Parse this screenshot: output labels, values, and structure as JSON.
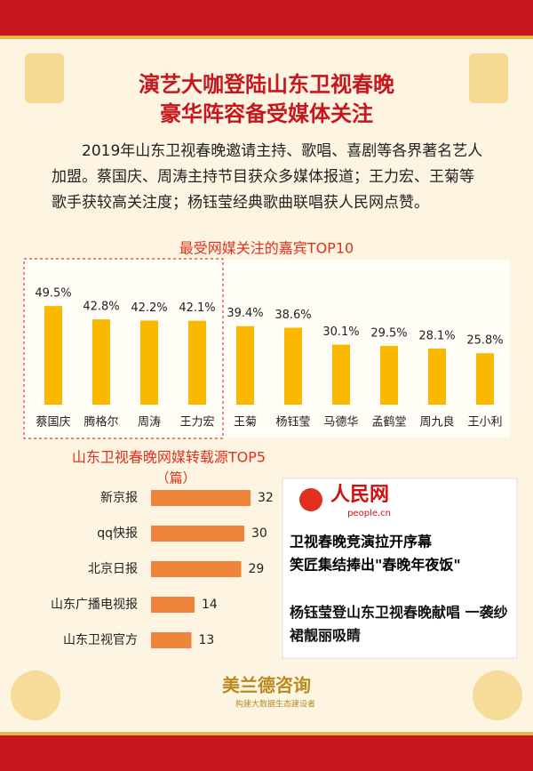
{
  "header": {
    "title_line1": "演艺大咖登陆山东卫视春晚",
    "title_line2": "豪华阵容备受媒体关注"
  },
  "intro": "2019年山东卫视春晚邀请主持、歌唱、喜剧等各界著名艺人加盟。蔡国庆、周涛主持节目获众多媒体报道；王力宏、王菊等歌手获较高关注度；杨钰莹经典歌曲联唱获人民网点赞。",
  "chart_data": [
    {
      "type": "bar",
      "title": "最受网媒关注的嘉宾TOP10",
      "categories": [
        "蔡国庆",
        "腾格尔",
        "周涛",
        "王力宏",
        "王菊",
        "杨钰莹",
        "马德华",
        "孟鹤堂",
        "周九良",
        "王小利"
      ],
      "values": [
        49.5,
        42.8,
        42.2,
        42.1,
        39.4,
        38.6,
        30.1,
        29.5,
        28.1,
        25.8
      ],
      "value_labels": [
        "49.5%",
        "42.8%",
        "42.2%",
        "42.1%",
        "39.4%",
        "38.6%",
        "30.1%",
        "29.5%",
        "28.1%",
        "25.8%"
      ],
      "color": "#fbb800"
    },
    {
      "type": "hbar",
      "title": "山东卫视春晚网媒转载源TOP5",
      "subtitle": "（篇）",
      "categories": [
        "新京报",
        "qq快报",
        "北京日报",
        "山东广播电视报",
        "山东卫视官方"
      ],
      "values": [
        32,
        30,
        29,
        14,
        13
      ],
      "color": "#f0843c"
    }
  ],
  "news": {
    "logo": "人民网",
    "logo_sub": "people.cn",
    "headline1_line1": "卫视春晚竞演拉开序幕",
    "headline1_line2": "笑匠集结捧出\"春晚年夜饭\"",
    "headline2": "杨钰莹登山东卫视春晚献唱 一袭纱裙靓丽吸睛"
  },
  "footer": {
    "brand": "美兰德咨询",
    "slogan": "构建大数据生态建设者"
  }
}
